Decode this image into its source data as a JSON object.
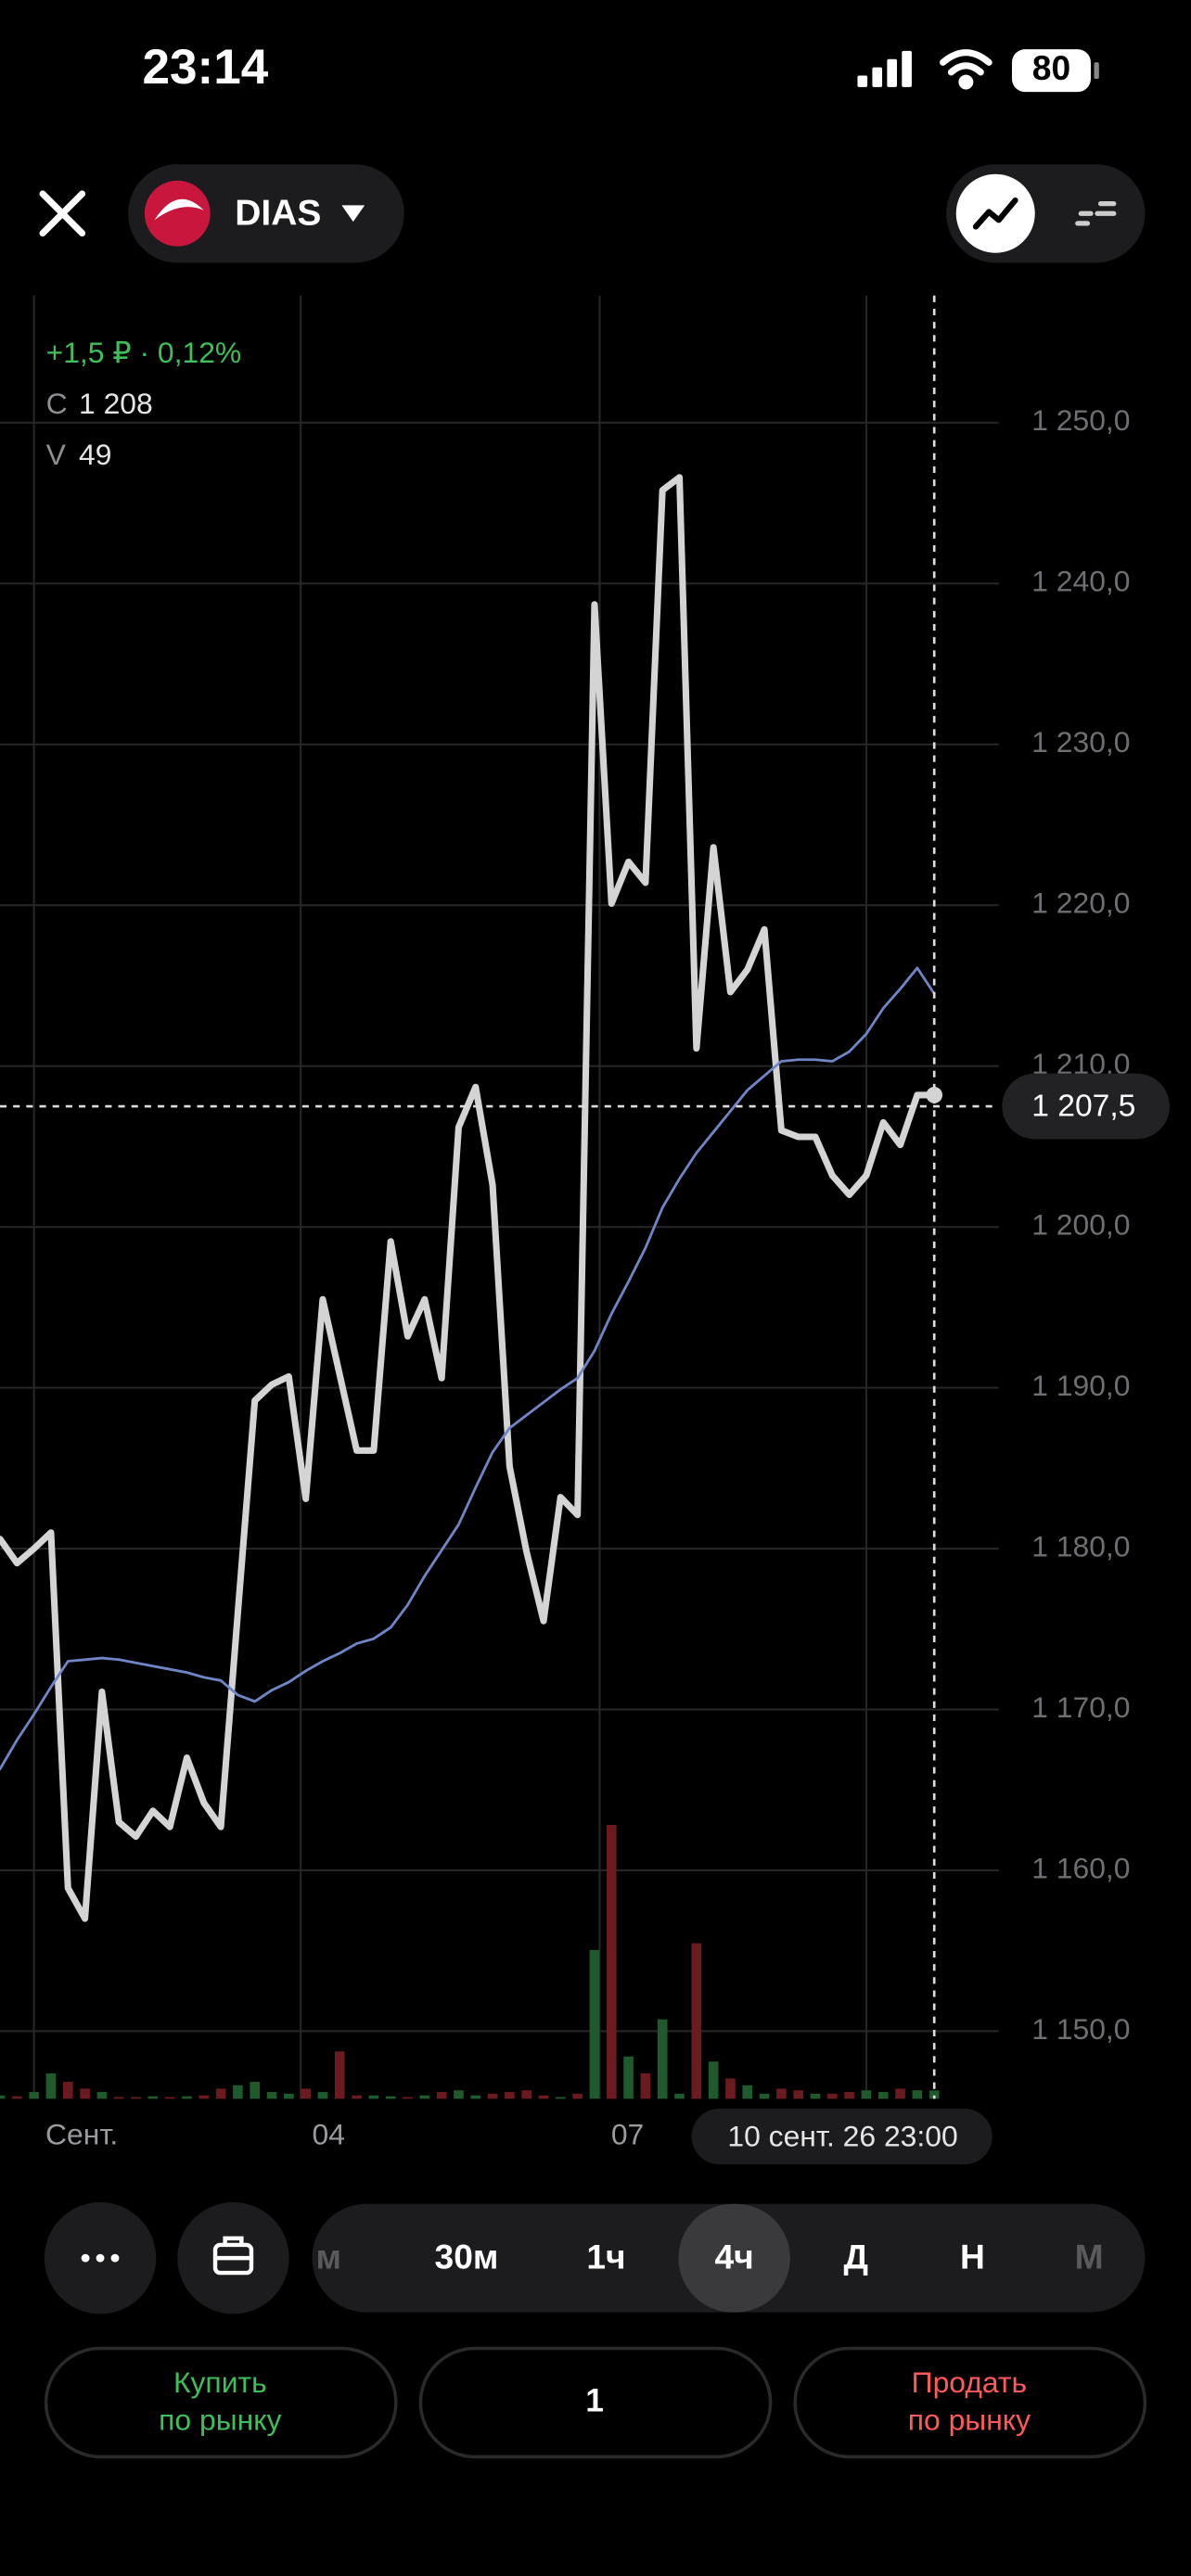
{
  "status_bar": {
    "time": "23:14",
    "battery": "80"
  },
  "header": {
    "ticker": "DIAS"
  },
  "chart_data": {
    "type": "line",
    "info": {
      "change": "+1,5 ₽ · 0,12%",
      "close_label": "C",
      "close_value": "1 208",
      "volume_label": "V",
      "volume_value": "49"
    },
    "series": [
      {
        "color": "#d4d4d4",
        "values": [
          1180.6,
          1179.1,
          1180.0,
          1181.0,
          1158.9,
          1157.0,
          1171.1,
          1163.0,
          1162.1,
          1163.7,
          1162.7,
          1167.0,
          1164.2,
          1162.7,
          1176.0,
          1189.2,
          1190.2,
          1190.7,
          1183.1,
          1195.5,
          1190.8,
          1186.1,
          1186.1,
          1199.1,
          1193.2,
          1195.5,
          1190.6,
          1206.2,
          1208.7,
          1202.6,
          1185.1,
          1179.8,
          1175.5,
          1183.2,
          1182.1,
          1238.7,
          1220.1,
          1222.7,
          1221.4,
          1245.8,
          1246.6,
          1211.1,
          1223.6,
          1214.6,
          1216.0,
          1218.5,
          1206.0,
          1205.6,
          1205.6,
          1203.2,
          1202.0,
          1203.2,
          1206.5,
          1205.1,
          1208.2,
          1208.2
        ]
      },
      {
        "color": "#6f86c6",
        "values": [
          1166.3,
          1168.1,
          1169.7,
          1171.4,
          1173.0,
          1173.1,
          1173.2,
          1173.1,
          1172.9,
          1172.7,
          1172.5,
          1172.3,
          1172.0,
          1171.8,
          1170.9,
          1170.5,
          1171.2,
          1171.7,
          1172.4,
          1173.0,
          1173.5,
          1174.1,
          1174.4,
          1175.1,
          1176.5,
          1178.3,
          1179.9,
          1181.5,
          1183.8,
          1186.0,
          1187.5,
          1188.3,
          1189.1,
          1189.9,
          1190.6,
          1192.3,
          1194.6,
          1196.6,
          1198.7,
          1201.2,
          1203.0,
          1204.6,
          1205.9,
          1207.2,
          1208.5,
          1209.4,
          1210.3,
          1210.4,
          1210.4,
          1210.3,
          1210.9,
          1212.0,
          1213.6,
          1214.8,
          1216.1,
          1214.5
        ]
      }
    ],
    "volume": {
      "up_color": "#1f5a2c",
      "down_color": "#6b1a1f",
      "ylim": [
        0,
        1700
      ],
      "values": [
        20,
        15,
        40,
        150,
        100,
        60,
        40,
        10,
        10,
        15,
        10,
        15,
        20,
        60,
        80,
        100,
        40,
        30,
        60,
        40,
        280,
        20,
        20,
        15,
        10,
        20,
        40,
        50,
        20,
        30,
        40,
        50,
        20,
        10,
        30,
        880,
        1620,
        250,
        150,
        470,
        30,
        920,
        220,
        120,
        80,
        30,
        60,
        50,
        30,
        30,
        40,
        50,
        40,
        60,
        50,
        49
      ]
    },
    "xlim": [
      0,
      58.8
    ],
    "ylim": [
      1145.8,
      1257.9
    ],
    "yticks": [
      {
        "value": 1150,
        "label": "1 150,0"
      },
      {
        "value": 1160,
        "label": "1 160,0"
      },
      {
        "value": 1170,
        "label": "1 170,0"
      },
      {
        "value": 1180,
        "label": "1 180,0"
      },
      {
        "value": 1190,
        "label": "1 190,0"
      },
      {
        "value": 1200,
        "label": "1 200,0"
      },
      {
        "value": 1210,
        "label": "1 210,0"
      },
      {
        "value": 1220,
        "label": "1 220,0"
      },
      {
        "value": 1230,
        "label": "1 230,0"
      },
      {
        "value": 1240,
        "label": "1 240,0"
      },
      {
        "value": 1250,
        "label": "1 250,0"
      }
    ],
    "xticks": [
      {
        "value": 2,
        "label": "Сент."
      },
      {
        "value": 17.7,
        "label": "04"
      },
      {
        "value": 35.3,
        "label": "07"
      },
      {
        "value": 51,
        "label": null
      }
    ],
    "grid": true,
    "crosshair": {
      "index": 55,
      "label": "10 сент. 26 23:00",
      "value": 1207.5,
      "value_label": "1 207,5"
    }
  },
  "controls": {
    "timeframes": [
      "м",
      "30м",
      "1ч",
      "4ч",
      "Д",
      "Н",
      "М"
    ],
    "selected": 3,
    "buy": [
      "Купить",
      "по рынку"
    ],
    "quantity": "1",
    "sell": [
      "Продать",
      "по рынку"
    ]
  }
}
